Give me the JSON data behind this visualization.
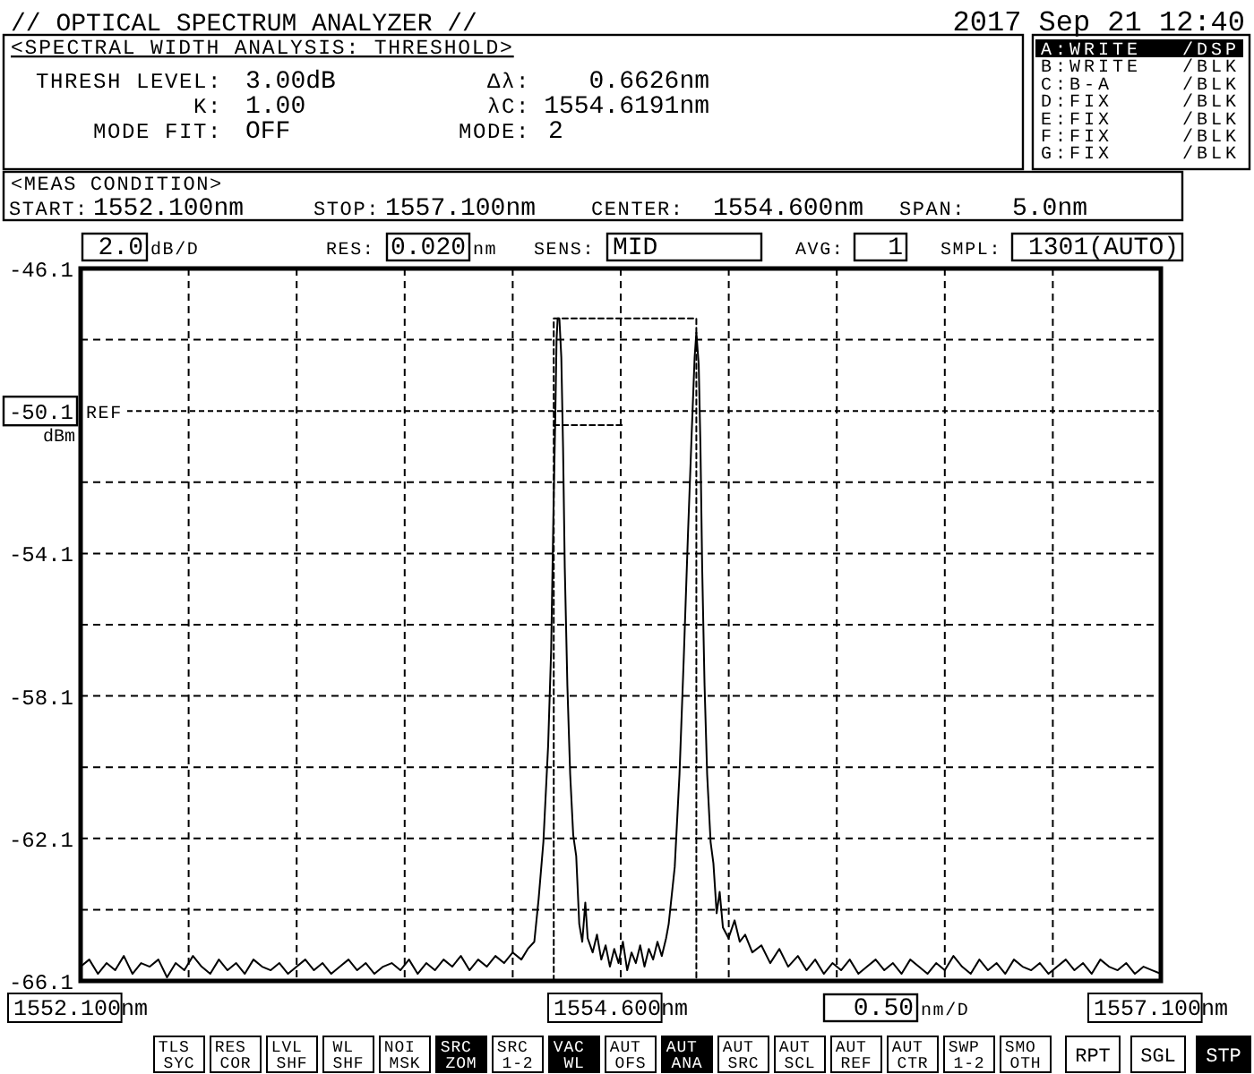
{
  "chart_data": {
    "type": "line",
    "title": "// OPTICAL SPECTRUM ANALYZER //",
    "ylabel": "dBm",
    "line_style": "solid",
    "grid": true,
    "xlim": [
      1552.1,
      1557.1
    ],
    "ylim": [
      -66.1,
      -46.1
    ],
    "xticks": [
      {
        "value": 1552.1,
        "label": "1552.100nm"
      },
      {
        "value": 1552.6,
        "label": null
      },
      {
        "value": 1553.1,
        "label": null
      },
      {
        "value": 1553.6,
        "label": null
      },
      {
        "value": 1554.1,
        "label": null
      },
      {
        "value": 1554.6,
        "label": "1554.600nm"
      },
      {
        "value": 1555.1,
        "label": null
      },
      {
        "value": 1555.6,
        "label": null
      },
      {
        "value": 1556.1,
        "label": null
      },
      {
        "value": 1556.6,
        "label": null
      },
      {
        "value": 1557.1,
        "label": "1557.100nm"
      }
    ],
    "yticks": [
      -66.1,
      {
        "value": -64.1,
        "label": null
      },
      -62.1,
      {
        "value": -60.1,
        "label": null
      },
      -58.1,
      {
        "value": -56.1,
        "label": null
      },
      -54.1,
      {
        "value": -52.1,
        "label": null
      },
      -50.1,
      {
        "value": -48.1,
        "label": null
      },
      -46.1
    ],
    "ref_lines": [
      {
        "axis": "y",
        "value": -50.1,
        "label": "REF",
        "line_style": "dashed"
      }
    ],
    "series": [
      {
        "type": "line",
        "color": "#000000",
        "x": [
          1552.1,
          1552.14,
          1552.18,
          1552.22,
          1552.26,
          1552.3,
          1552.34,
          1552.38,
          1552.42,
          1552.46,
          1552.5,
          1552.54,
          1552.58,
          1552.62,
          1552.66,
          1552.7,
          1552.74,
          1552.78,
          1552.82,
          1552.86,
          1552.9,
          1552.94,
          1552.98,
          1553.02,
          1553.06,
          1553.1,
          1553.14,
          1553.18,
          1553.22,
          1553.26,
          1553.3,
          1553.34,
          1553.38,
          1553.42,
          1553.46,
          1553.5,
          1553.54,
          1553.58,
          1553.62,
          1553.66,
          1553.7,
          1553.74,
          1553.78,
          1553.82,
          1553.86,
          1553.9,
          1553.94,
          1553.98,
          1554.02,
          1554.06,
          1554.1,
          1554.14,
          1554.17,
          1554.2,
          1554.22,
          1554.242,
          1554.264,
          1554.278,
          1554.289,
          1554.297,
          1554.303,
          1554.308,
          1554.316,
          1554.325,
          1554.333,
          1554.341,
          1554.353,
          1554.366,
          1554.38,
          1554.394,
          1554.408,
          1554.422,
          1554.436,
          1554.447,
          1554.47,
          1554.49,
          1554.51,
          1554.53,
          1554.55,
          1554.57,
          1554.59,
          1554.61,
          1554.63,
          1554.65,
          1554.67,
          1554.69,
          1554.71,
          1554.73,
          1554.75,
          1554.77,
          1554.79,
          1554.81,
          1554.822,
          1554.85,
          1554.872,
          1554.892,
          1554.911,
          1554.928,
          1554.942,
          1554.95,
          1554.961,
          1554.969,
          1554.977,
          1554.988,
          1555.0,
          1555.016,
          1555.029,
          1555.044,
          1555.058,
          1555.073,
          1555.099,
          1555.127,
          1555.151,
          1555.176,
          1555.209,
          1555.251,
          1555.292,
          1555.334,
          1555.375,
          1555.42,
          1555.46,
          1555.5,
          1555.54,
          1555.58,
          1555.62,
          1555.66,
          1555.7,
          1555.74,
          1555.78,
          1555.82,
          1555.86,
          1555.9,
          1555.94,
          1555.98,
          1556.02,
          1556.06,
          1556.1,
          1556.14,
          1556.18,
          1556.22,
          1556.26,
          1556.3,
          1556.34,
          1556.38,
          1556.42,
          1556.46,
          1556.5,
          1556.54,
          1556.58,
          1556.62,
          1556.66,
          1556.7,
          1556.74,
          1556.78,
          1556.82,
          1556.86,
          1556.9,
          1556.94,
          1556.98,
          1557.02,
          1557.06,
          1557.1
        ],
        "values": [
          -65.7,
          -65.5,
          -65.9,
          -65.6,
          -65.8,
          -65.4,
          -65.9,
          -65.6,
          -65.7,
          -65.5,
          -66.0,
          -65.6,
          -65.8,
          -65.4,
          -65.7,
          -65.9,
          -65.5,
          -65.8,
          -65.6,
          -65.9,
          -65.5,
          -65.7,
          -65.8,
          -65.6,
          -65.9,
          -65.7,
          -65.5,
          -65.8,
          -65.6,
          -65.9,
          -65.7,
          -65.5,
          -65.8,
          -65.6,
          -65.9,
          -65.7,
          -65.6,
          -65.8,
          -65.5,
          -65.9,
          -65.6,
          -65.8,
          -65.5,
          -65.7,
          -65.4,
          -65.8,
          -65.5,
          -65.7,
          -65.4,
          -65.6,
          -65.3,
          -65.5,
          -65.2,
          -65.0,
          -63.8,
          -62.2,
          -59.5,
          -56.8,
          -52.8,
          -50.3,
          -48.1,
          -47.5,
          -47.5,
          -48.6,
          -51.1,
          -54.5,
          -57.8,
          -60.3,
          -62.0,
          -62.6,
          -64.5,
          -65.0,
          -63.9,
          -64.9,
          -65.3,
          -64.8,
          -65.5,
          -65.1,
          -65.7,
          -65.2,
          -65.6,
          -65.0,
          -65.8,
          -65.3,
          -65.6,
          -65.1,
          -65.7,
          -65.2,
          -65.5,
          -65.0,
          -65.4,
          -64.9,
          -64.5,
          -62.9,
          -60.3,
          -57.0,
          -53.6,
          -50.8,
          -48.6,
          -47.9,
          -48.8,
          -51.1,
          -54.5,
          -57.8,
          -60.3,
          -62.2,
          -62.8,
          -64.2,
          -63.6,
          -64.6,
          -64.9,
          -64.4,
          -65.0,
          -64.8,
          -65.3,
          -65.1,
          -65.6,
          -65.2,
          -65.7,
          -65.4,
          -65.8,
          -65.5,
          -65.9,
          -65.6,
          -65.8,
          -65.5,
          -65.9,
          -65.7,
          -65.5,
          -65.8,
          -65.6,
          -65.9,
          -65.5,
          -65.7,
          -65.9,
          -65.6,
          -65.8,
          -65.4,
          -65.7,
          -65.9,
          -65.5,
          -65.8,
          -65.6,
          -65.9,
          -65.5,
          -65.7,
          -65.8,
          -65.6,
          -65.9,
          -65.7,
          -65.5,
          -65.8,
          -65.6,
          -65.9,
          -65.5,
          -65.7,
          -65.8,
          -65.6,
          -65.9,
          -65.7,
          -65.8,
          -65.9
        ]
      },
      {
        "type": "line",
        "color": "#000000",
        "line_style": "dashed",
        "x": [
          1554.29,
          1554.29,
          1554.95,
          1554.95
        ],
        "values": [
          -66.1,
          -47.5,
          -47.5,
          -66.1
        ]
      },
      {
        "type": "line",
        "color": "#000000",
        "line_style": "dashed",
        "x": [
          1554.29,
          1554.62
        ],
        "values": [
          -50.5,
          -50.5
        ]
      }
    ],
    "annotations": [
      "2017 Sep 21 12:40",
      "<SPECTRAL WIDTH ANALYSIS: THRESHOLD>",
      "THRESH LEVEL:",
      "3.00dB",
      "K:",
      "1.00",
      "MODE FIT:",
      "OFF",
      "Δλ:",
      "0.6626nm",
      "λC:",
      "1554.6191nm",
      "MODE:",
      "2",
      "A:WRITE",
      "/DSP",
      "B:WRITE",
      "/BLK",
      "C:B-A",
      "/BLK",
      "D:FIX",
      "/BLK",
      "E:FIX",
      "/BLK",
      "F:FIX",
      "/BLK",
      "G:FIX",
      "/BLK",
      "<MEAS CONDITION>",
      "START:",
      "1552.100nm",
      "STOP:",
      "1557.100nm",
      "CENTER:",
      "1554.600nm",
      "SPAN:",
      "5.0nm",
      "2.0",
      "dB/D",
      "RES:",
      "0.020",
      "nm",
      "SENS:",
      "MID",
      "AVG:",
      "1",
      "SMPL:",
      "1301(AUTO)",
      "0.50",
      "nm/D",
      "TLS SYC",
      "RES COR",
      "LVL SHF",
      "WL SHF",
      "NOI MSK",
      "SRC ZOM",
      "SRC 1-2",
      "VAC WL",
      "AUT OFS",
      "AUT ANA",
      "AUT SRC",
      "AUT SCL",
      "AUT REF",
      "AUT CTR",
      "SWP 1-2",
      "SMO OTH",
      "RPT",
      "SGL",
      "STP"
    ]
  }
}
